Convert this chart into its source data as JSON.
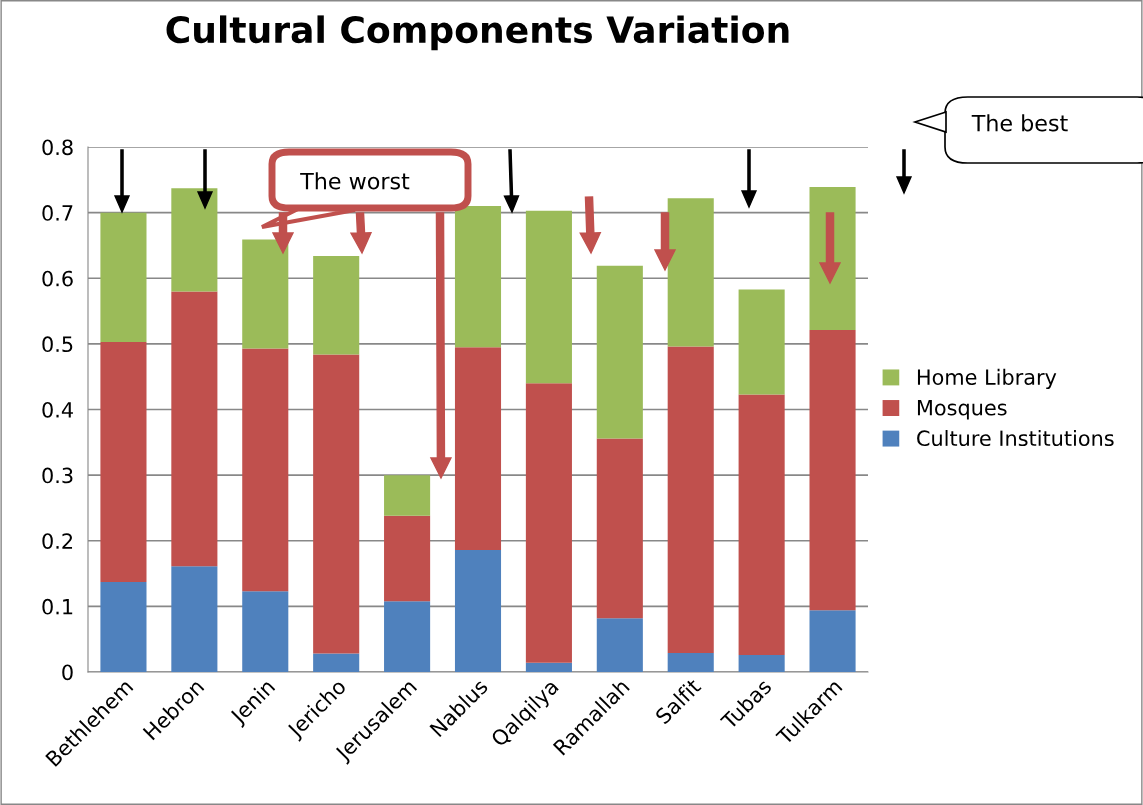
{
  "chart_data": {
    "type": "bar",
    "title": "Cultural Components Variation",
    "categories": [
      "Bethlehem",
      "Hebron",
      "Jenin",
      "Jericho",
      "Jerusalem",
      "Nablus",
      "Qalqilya",
      "Ramallah",
      "Salfit",
      "Tubas",
      "Tulkarm"
    ],
    "stacked": true,
    "series": [
      {
        "name": "Culture Institutions",
        "color": "#4f81bd",
        "values": [
          0.137,
          0.161,
          0.123,
          0.028,
          0.108,
          0.186,
          0.014,
          0.082,
          0.029,
          0.026,
          0.094
        ]
      },
      {
        "name": "Mosques",
        "color": "#c0504d",
        "values": [
          0.366,
          0.419,
          0.37,
          0.456,
          0.13,
          0.309,
          0.426,
          0.274,
          0.467,
          0.397,
          0.427
        ]
      },
      {
        "name": "Home Library",
        "color": "#9bbb59",
        "values": [
          0.197,
          0.157,
          0.166,
          0.15,
          0.062,
          0.215,
          0.263,
          0.263,
          0.226,
          0.16,
          0.218
        ]
      }
    ],
    "ylim": [
      0,
      0.8
    ],
    "yticks": [
      0,
      0.1,
      0.2,
      0.3,
      0.4,
      0.5,
      0.6,
      0.7,
      0.8
    ],
    "grid": "y",
    "legend": "right",
    "annotations": [
      "The worst",
      "The best"
    ]
  }
}
